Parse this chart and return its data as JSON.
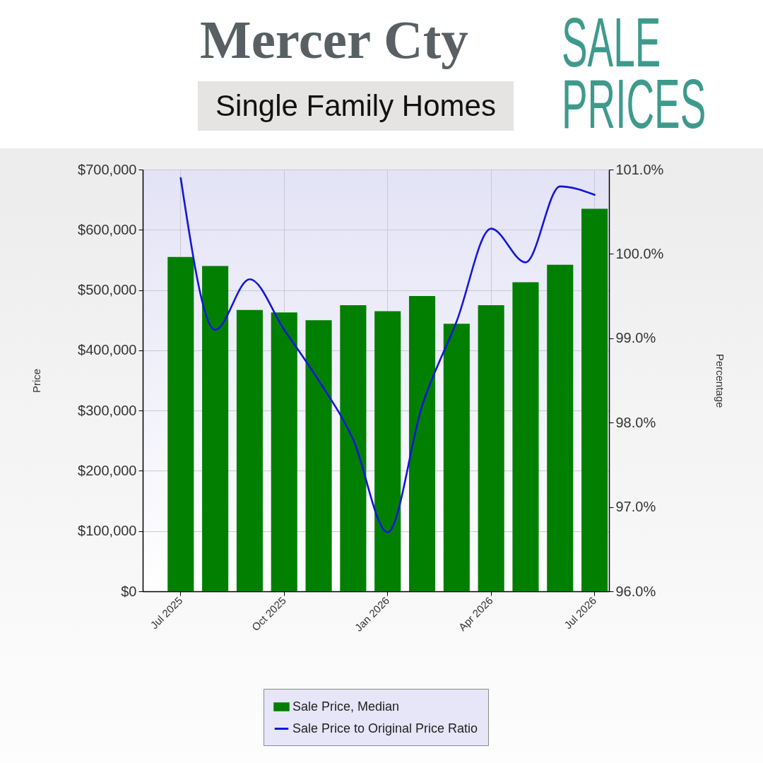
{
  "chart_data": {
    "type": "bar",
    "title": "Mercer Cty",
    "subtitle": "Single Family Homes",
    "annotations": [
      "SALE PRICES"
    ],
    "ylabel": "Price",
    "y2label": "Percentage",
    "categories": [
      "Jul 2025",
      null,
      null,
      "Oct 2025",
      null,
      null,
      "Jan 2026",
      null,
      null,
      "Apr 2026",
      null,
      null,
      "Jul 2026"
    ],
    "series": [
      {
        "name": "Sale Price, Median",
        "color": "#007f00",
        "values": [
          555000,
          540000,
          467000,
          463000,
          450000,
          475000,
          465000,
          490000,
          444000,
          475000,
          513000,
          542000,
          635000
        ]
      },
      {
        "name": "Sale Price to Original Price Ratio",
        "type": "line",
        "axis": "y2",
        "color": "#1414dc",
        "values": [
          100.9,
          99.1,
          99.7,
          99.1,
          98.5,
          97.8,
          96.7,
          98.2,
          99.2,
          100.3,
          99.9,
          100.8,
          100.7
        ]
      }
    ],
    "ylim": [
      0,
      700000
    ],
    "yticks": [
      {
        "value": 0,
        "label": "$0"
      },
      {
        "value": 100000,
        "label": "$100,000"
      },
      {
        "value": 200000,
        "label": "$200,000"
      },
      {
        "value": 300000,
        "label": "$300,000"
      },
      {
        "value": 400000,
        "label": "$400,000"
      },
      {
        "value": 500000,
        "label": "$500,000"
      },
      {
        "value": 600000,
        "label": "$600,000"
      },
      {
        "value": 700000,
        "label": "$700,000"
      }
    ],
    "y2lim": [
      96,
      101
    ],
    "y2ticks": [
      {
        "value": 96,
        "label": "96.0%"
      },
      {
        "value": 97,
        "label": "97.0%"
      },
      {
        "value": 98,
        "label": "98.0%"
      },
      {
        "value": 99,
        "label": "99.0%"
      },
      {
        "value": 100,
        "label": "100.0%"
      },
      {
        "value": 101,
        "label": "101.0%"
      }
    ],
    "grid": true,
    "legend": "bottom"
  }
}
